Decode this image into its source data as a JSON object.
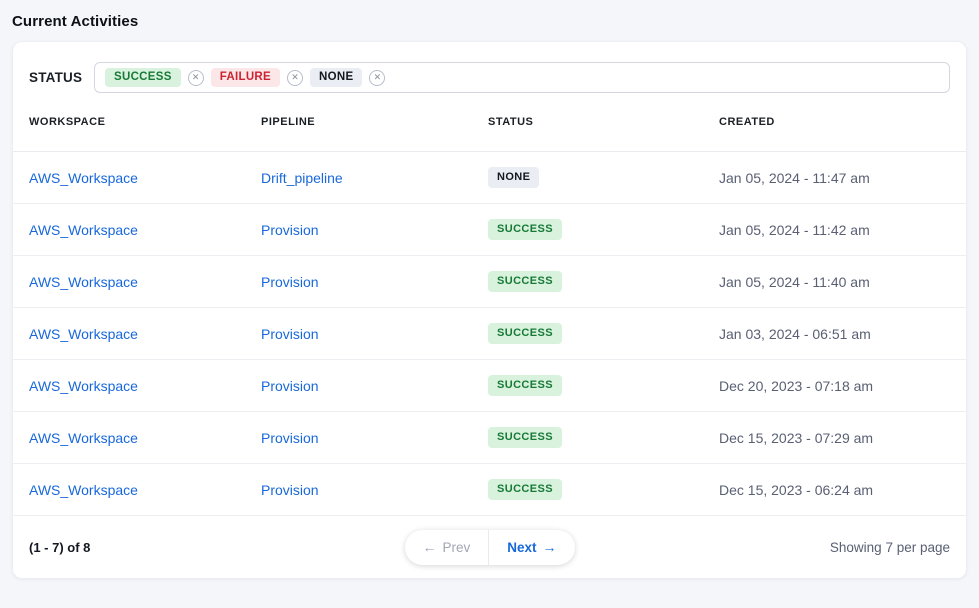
{
  "page": {
    "title": "Current Activities"
  },
  "filter": {
    "label": "STATUS",
    "tags": [
      {
        "label": "SUCCESS"
      },
      {
        "label": "FAILURE"
      },
      {
        "label": "NONE"
      }
    ],
    "remove_icon": "✕"
  },
  "table": {
    "columns": {
      "workspace": "WORKSPACE",
      "pipeline": "PIPELINE",
      "status": "STATUS",
      "created": "CREATED"
    },
    "rows": [
      {
        "workspace": "AWS_Workspace",
        "pipeline": "Drift_pipeline",
        "status": "NONE",
        "created": "Jan 05, 2024 - 11:47 am"
      },
      {
        "workspace": "AWS_Workspace",
        "pipeline": "Provision",
        "status": "SUCCESS",
        "created": "Jan 05, 2024 - 11:42 am"
      },
      {
        "workspace": "AWS_Workspace",
        "pipeline": "Provision",
        "status": "SUCCESS",
        "created": "Jan 05, 2024 - 11:40 am"
      },
      {
        "workspace": "AWS_Workspace",
        "pipeline": "Provision",
        "status": "SUCCESS",
        "created": "Jan 03, 2024 - 06:51 am"
      },
      {
        "workspace": "AWS_Workspace",
        "pipeline": "Provision",
        "status": "SUCCESS",
        "created": "Dec 20, 2023 - 07:18 am"
      },
      {
        "workspace": "AWS_Workspace",
        "pipeline": "Provision",
        "status": "SUCCESS",
        "created": "Dec 15, 2023 - 07:29 am"
      },
      {
        "workspace": "AWS_Workspace",
        "pipeline": "Provision",
        "status": "SUCCESS",
        "created": "Dec 15, 2023 - 06:24 am"
      }
    ]
  },
  "pagination": {
    "range": "(1 - 7) of 8",
    "prev_label": "Prev",
    "next_label": "Next",
    "prev_arrow": "←",
    "next_arrow": "→",
    "per_page": "Showing 7 per page"
  },
  "colors": {
    "link_blue": "#1868db",
    "success_bg": "#d8f2de",
    "success_text": "#187a36",
    "failure_bg": "#fce7e8",
    "failure_text": "#cb2431",
    "none_bg": "#ebedf5",
    "none_text": "#14171f",
    "page_bg": "#f4f6fa",
    "muted_text": "#596073"
  }
}
